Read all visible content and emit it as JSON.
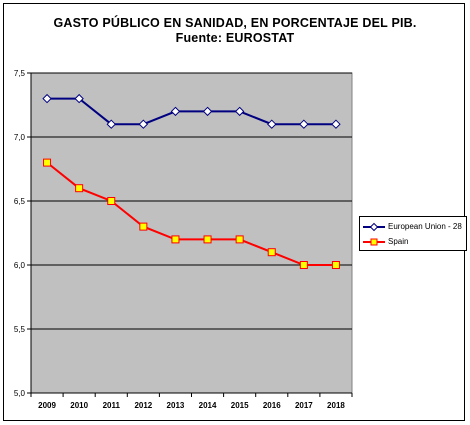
{
  "chart_data": {
    "type": "line",
    "title": "GASTO PÚBLICO EN SANIDAD, EN PORCENTAJE DEL PIB.",
    "subtitle": "Fuente: EUROSTAT",
    "xlabel": "",
    "ylabel": "",
    "categories": [
      "2009",
      "2010",
      "2011",
      "2012",
      "2013",
      "2014",
      "2015",
      "2016",
      "2017",
      "2018"
    ],
    "ylim": [
      5.0,
      7.5
    ],
    "yticks": [
      "5,0",
      "5,5",
      "6,0",
      "6,5",
      "7,0",
      "7,5"
    ],
    "grid": true,
    "legend_position": "right",
    "plot_background": "#c0c0c0",
    "series": [
      {
        "name": "European Union - 28",
        "color": "#000080",
        "marker": "diamond",
        "marker_fill": "#ffffff",
        "values": [
          7.3,
          7.3,
          7.1,
          7.1,
          7.2,
          7.2,
          7.2,
          7.1,
          7.1,
          7.1
        ]
      },
      {
        "name": "Spain",
        "color": "#ff0000",
        "marker": "square",
        "marker_fill": "#ffff00",
        "values": [
          6.8,
          6.6,
          6.5,
          6.3,
          6.2,
          6.2,
          6.2,
          6.1,
          6.0,
          6.0
        ]
      }
    ]
  }
}
